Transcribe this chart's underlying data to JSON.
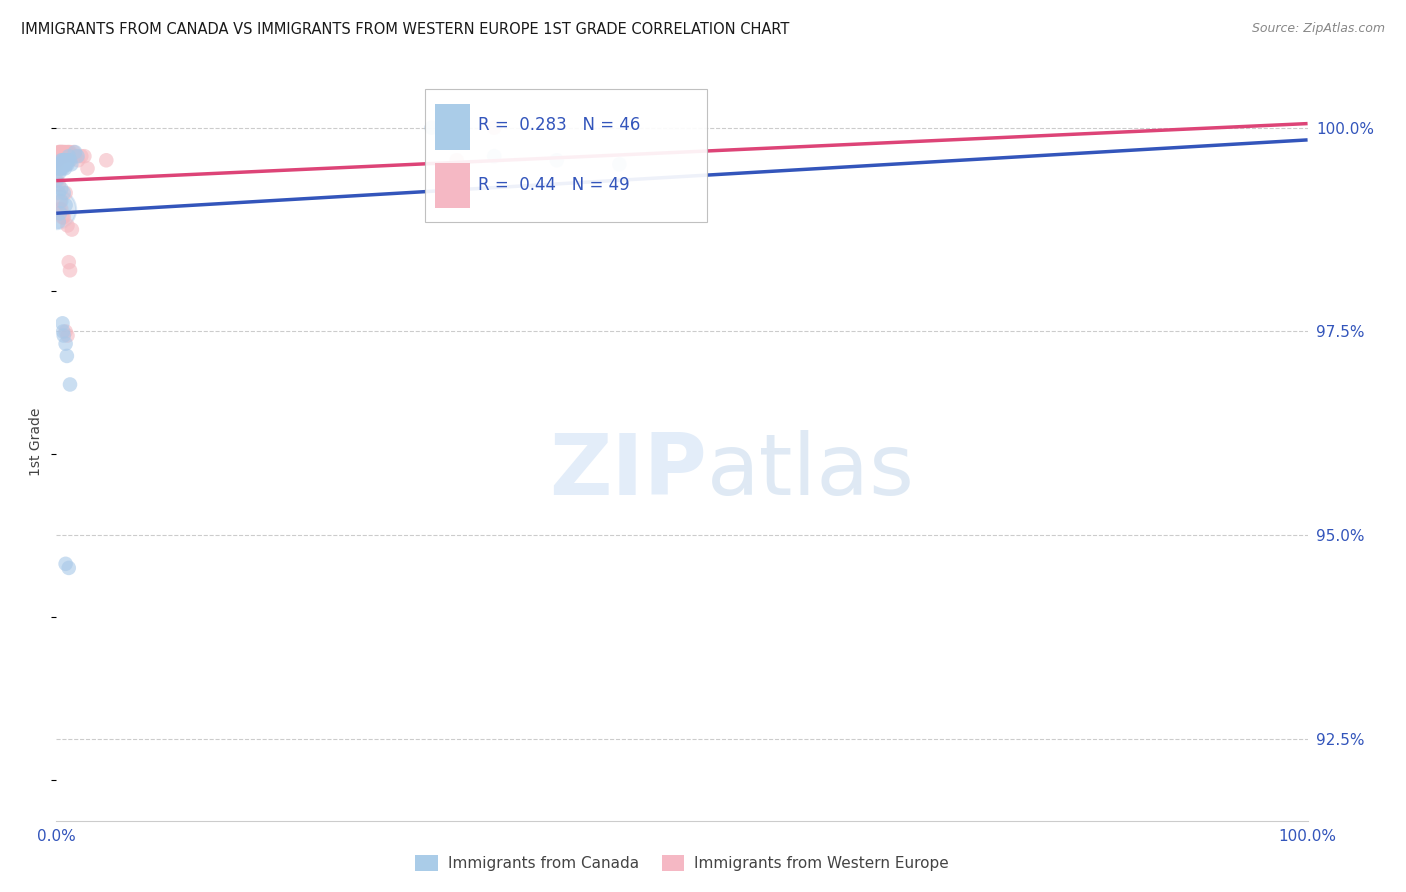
{
  "title": "IMMIGRANTS FROM CANADA VS IMMIGRANTS FROM WESTERN EUROPE 1ST GRADE CORRELATION CHART",
  "source": "Source: ZipAtlas.com",
  "ylabel": "1st Grade",
  "legend_label_blue": "Immigrants from Canada",
  "legend_label_pink": "Immigrants from Western Europe",
  "R_blue": 0.283,
  "N_blue": 46,
  "R_pink": 0.44,
  "N_pink": 49,
  "watermark_zip": "ZIP",
  "watermark_atlas": "atlas",
  "blue_color": "#a8c8e8",
  "pink_color": "#f4b8c0",
  "blue_line_color": "#3355bb",
  "pink_line_color": "#dd4477",
  "blue_scatter": [
    [
      0.0,
      99.35
    ],
    [
      0.1,
      99.55
    ],
    [
      0.15,
      99.5
    ],
    [
      0.2,
      99.55
    ],
    [
      0.25,
      99.45
    ],
    [
      0.3,
      99.5
    ],
    [
      0.35,
      99.55
    ],
    [
      0.4,
      99.6
    ],
    [
      0.4,
      99.5
    ],
    [
      0.45,
      99.55
    ],
    [
      0.5,
      99.6
    ],
    [
      0.5,
      99.5
    ],
    [
      0.55,
      99.55
    ],
    [
      0.6,
      99.6
    ],
    [
      0.65,
      99.55
    ],
    [
      0.7,
      99.6
    ],
    [
      0.7,
      99.5
    ],
    [
      0.75,
      99.6
    ],
    [
      0.8,
      99.55
    ],
    [
      0.85,
      99.6
    ],
    [
      0.9,
      99.55
    ],
    [
      0.95,
      99.6
    ],
    [
      1.0,
      99.65
    ],
    [
      1.1,
      99.6
    ],
    [
      1.2,
      99.55
    ],
    [
      1.5,
      99.7
    ],
    [
      1.7,
      99.65
    ],
    [
      0.2,
      99.2
    ],
    [
      0.4,
      99.25
    ],
    [
      0.6,
      99.2
    ],
    [
      0.75,
      99.05
    ],
    [
      0.2,
      98.85
    ],
    [
      0.3,
      98.95
    ],
    [
      0.4,
      99.1
    ],
    [
      0.5,
      97.6
    ],
    [
      0.55,
      97.5
    ],
    [
      0.6,
      97.45
    ],
    [
      0.75,
      97.35
    ],
    [
      0.85,
      97.2
    ],
    [
      1.1,
      96.85
    ],
    [
      0.75,
      94.65
    ],
    [
      1.0,
      94.6
    ],
    [
      30.0,
      100.0
    ],
    [
      35.0,
      99.65
    ],
    [
      40.0,
      99.6
    ],
    [
      45.0,
      99.55
    ]
  ],
  "pink_scatter": [
    [
      0.0,
      99.6
    ],
    [
      0.05,
      99.55
    ],
    [
      0.1,
      99.65
    ],
    [
      0.1,
      99.6
    ],
    [
      0.15,
      99.65
    ],
    [
      0.2,
      99.7
    ],
    [
      0.2,
      99.65
    ],
    [
      0.25,
      99.7
    ],
    [
      0.25,
      99.65
    ],
    [
      0.3,
      99.7
    ],
    [
      0.3,
      99.65
    ],
    [
      0.35,
      99.7
    ],
    [
      0.35,
      99.65
    ],
    [
      0.4,
      99.7
    ],
    [
      0.4,
      99.65
    ],
    [
      0.45,
      99.7
    ],
    [
      0.5,
      99.7
    ],
    [
      0.55,
      99.7
    ],
    [
      0.6,
      99.65
    ],
    [
      0.65,
      99.7
    ],
    [
      0.75,
      99.7
    ],
    [
      0.8,
      99.65
    ],
    [
      0.9,
      99.7
    ],
    [
      1.0,
      99.7
    ],
    [
      1.1,
      99.7
    ],
    [
      1.25,
      99.65
    ],
    [
      1.4,
      99.7
    ],
    [
      1.5,
      99.65
    ],
    [
      1.75,
      99.6
    ],
    [
      2.0,
      99.65
    ],
    [
      0.1,
      99.35
    ],
    [
      0.2,
      99.3
    ],
    [
      0.3,
      99.1
    ],
    [
      0.4,
      99.0
    ],
    [
      0.6,
      98.9
    ],
    [
      0.9,
      98.8
    ],
    [
      0.25,
      99.0
    ],
    [
      0.5,
      98.9
    ],
    [
      0.75,
      97.5
    ],
    [
      0.9,
      97.45
    ],
    [
      1.0,
      98.35
    ],
    [
      1.1,
      98.25
    ],
    [
      1.25,
      98.75
    ],
    [
      0.75,
      99.2
    ],
    [
      32.0,
      99.6
    ],
    [
      4.0,
      99.6
    ],
    [
      35.0,
      100.0
    ],
    [
      2.25,
      99.65
    ],
    [
      2.5,
      99.5
    ]
  ],
  "xlim": [
    0.0,
    100.0
  ],
  "ylim": [
    91.5,
    100.8
  ],
  "yticks": [
    92.5,
    95.0,
    97.5,
    100.0
  ],
  "xticks": [
    0.0,
    10.0,
    20.0,
    30.0,
    40.0,
    50.0,
    60.0,
    70.0,
    80.0,
    90.0,
    100.0
  ],
  "xtick_labels": [
    "0.0%",
    "",
    "",
    "",
    "",
    "",
    "",
    "",
    "",
    "",
    "100.0%"
  ],
  "ytick_labels": [
    "92.5%",
    "95.0%",
    "97.5%",
    "100.0%"
  ],
  "blue_line_x": [
    0.0,
    100.0
  ],
  "blue_line_y": [
    98.95,
    99.85
  ],
  "pink_line_x": [
    0.0,
    100.0
  ],
  "pink_line_y": [
    99.35,
    100.05
  ],
  "big_blue_x": 0.0,
  "big_blue_y": 99.0,
  "big_blue_size": 800
}
